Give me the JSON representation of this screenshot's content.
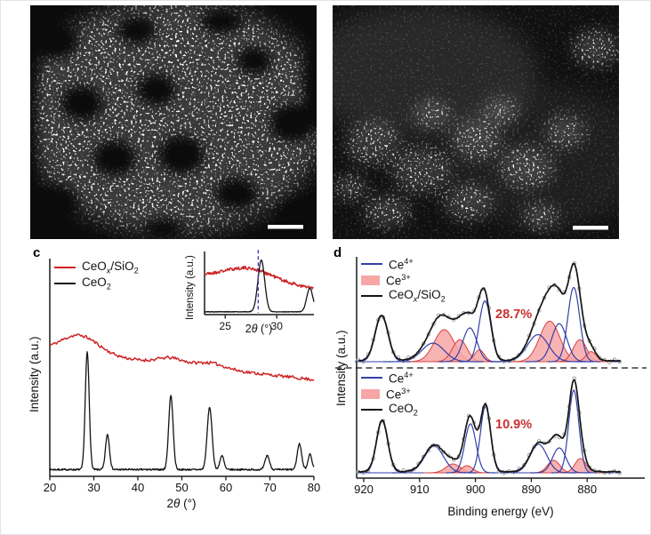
{
  "figure": {
    "panel_c_label": "c",
    "panel_d_label": "d",
    "colors": {
      "red": "#cf2424",
      "black": "#141414",
      "blue": "#3240a8",
      "pink_fill": "#f7a6a6",
      "pink_edge": "#d84040",
      "scatter": "#9a9a9a",
      "dashed_blue": "#3333bb",
      "percent": "#cb2f2f",
      "axis": "#1a1a1a"
    },
    "micrographs": {
      "left": {
        "name": "dark-field-micrograph-left",
        "scale_bar": true
      },
      "right": {
        "name": "dark-field-micrograph-right",
        "scale_bar": true
      }
    }
  },
  "chart_data": [
    {
      "id": "xrd-main",
      "type": "line",
      "xlabel": "2*θ* (°)",
      "ylabel": "Intensity (a.u.)",
      "xlim": [
        20,
        80
      ],
      "x_ticks": [
        20,
        30,
        40,
        50,
        60,
        70,
        80
      ],
      "legend": [
        {
          "label": "CeO_*x*_/SiO_2_",
          "swatch": "line",
          "color_key": "red"
        },
        {
          "label": "CeO_2_",
          "swatch": "line",
          "color_key": "black"
        }
      ],
      "series": [
        {
          "name": "CeOx/SiO2",
          "color_key": "red",
          "seed": 11,
          "noise": 0.013,
          "step": 0.25,
          "baseline": {
            "start": 1.03,
            "slope": -0.0042
          },
          "peaks": [
            [
              26.8,
              0.155,
              4.2
            ],
            [
              47.5,
              0.05,
              2.8
            ],
            [
              56.5,
              0.045,
              3.2
            ]
          ]
        },
        {
          "name": "CeO2",
          "color_key": "black",
          "seed": 7,
          "noise": 0.007,
          "step": 0.1,
          "baseline": {
            "start": 0.012,
            "slope": 0
          },
          "peaks": [
            [
              28.5,
              1.0,
              0.45
            ],
            [
              33.1,
              0.3,
              0.45
            ],
            [
              47.5,
              0.63,
              0.5
            ],
            [
              56.3,
              0.53,
              0.55
            ],
            [
              59.1,
              0.12,
              0.45
            ],
            [
              69.4,
              0.12,
              0.5
            ],
            [
              76.7,
              0.22,
              0.5
            ],
            [
              79.1,
              0.13,
              0.45
            ]
          ]
        }
      ]
    },
    {
      "id": "xrd-inset",
      "type": "line",
      "xlabel": "2*θ* (°)",
      "ylabel": "Intensity (a.u.)",
      "xlim": [
        23,
        33.6
      ],
      "x_ticks": [
        25,
        30
      ],
      "dashed_x": 28.2,
      "series": [
        {
          "name": "CeOx/SiO2",
          "color_key": "red",
          "seed": 21,
          "noise": 0.032,
          "step": 0.06,
          "baseline": {
            "start": 0.7,
            "slope": -0.022
          },
          "peaks": [
            [
              27.3,
              0.26,
              2.4
            ]
          ]
        },
        {
          "name": "CeO2",
          "color_key": "black",
          "seed": 5,
          "noise": 0.006,
          "step": 0.04,
          "baseline": {
            "start": 0.02,
            "slope": 0
          },
          "peaks": [
            [
              28.5,
              1.0,
              0.33
            ],
            [
              33.2,
              0.46,
              0.3
            ]
          ]
        }
      ]
    },
    {
      "id": "xps-top",
      "type": "line",
      "sample": "CeO_*x*_/SiO_2_",
      "ce3_fraction_label": "28.7%",
      "xlim": [
        921,
        874
      ],
      "x_ticks": [
        920,
        910,
        900,
        890,
        880
      ],
      "xlabel": "Binding energy (eV)",
      "ylabel": "Intensity (a.u.)",
      "legend": [
        {
          "label": "Ce^4+^",
          "swatch": "line",
          "color_key": "blue"
        },
        {
          "label": "Ce^3+^",
          "swatch": "fill",
          "color_key": "pink_fill"
        },
        {
          "label": "CeO_*x*_/SiO_2_",
          "swatch": "line",
          "color_key": "black"
        }
      ],
      "envelope": {
        "seed": 31,
        "noise": 0.005
      },
      "components": {
        "ce4_peaks": [
          [
            916.8,
            0.54,
            1.15
          ],
          [
            907.6,
            0.22,
            2.0
          ],
          [
            901.0,
            0.4,
            1.25
          ],
          [
            898.3,
            0.72,
            1.05
          ],
          [
            888.8,
            0.32,
            1.9
          ],
          [
            885.0,
            0.45,
            1.35
          ],
          [
            882.4,
            0.88,
            1.05
          ]
        ],
        "ce3_peaks": [
          [
            905.6,
            0.38,
            1.8
          ],
          [
            902.8,
            0.26,
            1.3
          ],
          [
            899.3,
            0.14,
            0.9
          ],
          [
            886.7,
            0.48,
            1.8
          ],
          [
            881.3,
            0.26,
            1.2
          ],
          [
            879.3,
            0.12,
            0.9
          ]
        ]
      }
    },
    {
      "id": "xps-bottom",
      "type": "line",
      "sample": "CeO_2_",
      "ce3_fraction_label": "10.9%",
      "xlim": [
        921,
        874
      ],
      "x_ticks": [
        920,
        910,
        900,
        890,
        880
      ],
      "xlabel": "Binding energy (eV)",
      "ylabel": "Intensity (a.u.)",
      "legend": [
        {
          "label": "Ce^4+^",
          "swatch": "line",
          "color_key": "blue"
        },
        {
          "label": "Ce^3+^",
          "swatch": "fill",
          "color_key": "pink_fill"
        },
        {
          "label": "CeO_2_",
          "swatch": "line",
          "color_key": "black"
        }
      ],
      "envelope": {
        "seed": 33,
        "noise": 0.005
      },
      "components": {
        "ce4_peaks": [
          [
            916.7,
            0.58,
            1.0
          ],
          [
            907.4,
            0.3,
            1.7
          ],
          [
            900.9,
            0.55,
            1.0
          ],
          [
            898.2,
            0.75,
            0.9
          ],
          [
            888.7,
            0.32,
            1.5
          ],
          [
            885.0,
            0.28,
            1.2
          ],
          [
            882.4,
            0.93,
            0.9
          ]
        ],
        "ce3_peaks": [
          [
            904.0,
            0.1,
            1.3
          ],
          [
            901.5,
            0.08,
            1.0
          ],
          [
            886.0,
            0.14,
            1.1
          ],
          [
            881.2,
            0.16,
            1.0
          ]
        ]
      }
    }
  ]
}
